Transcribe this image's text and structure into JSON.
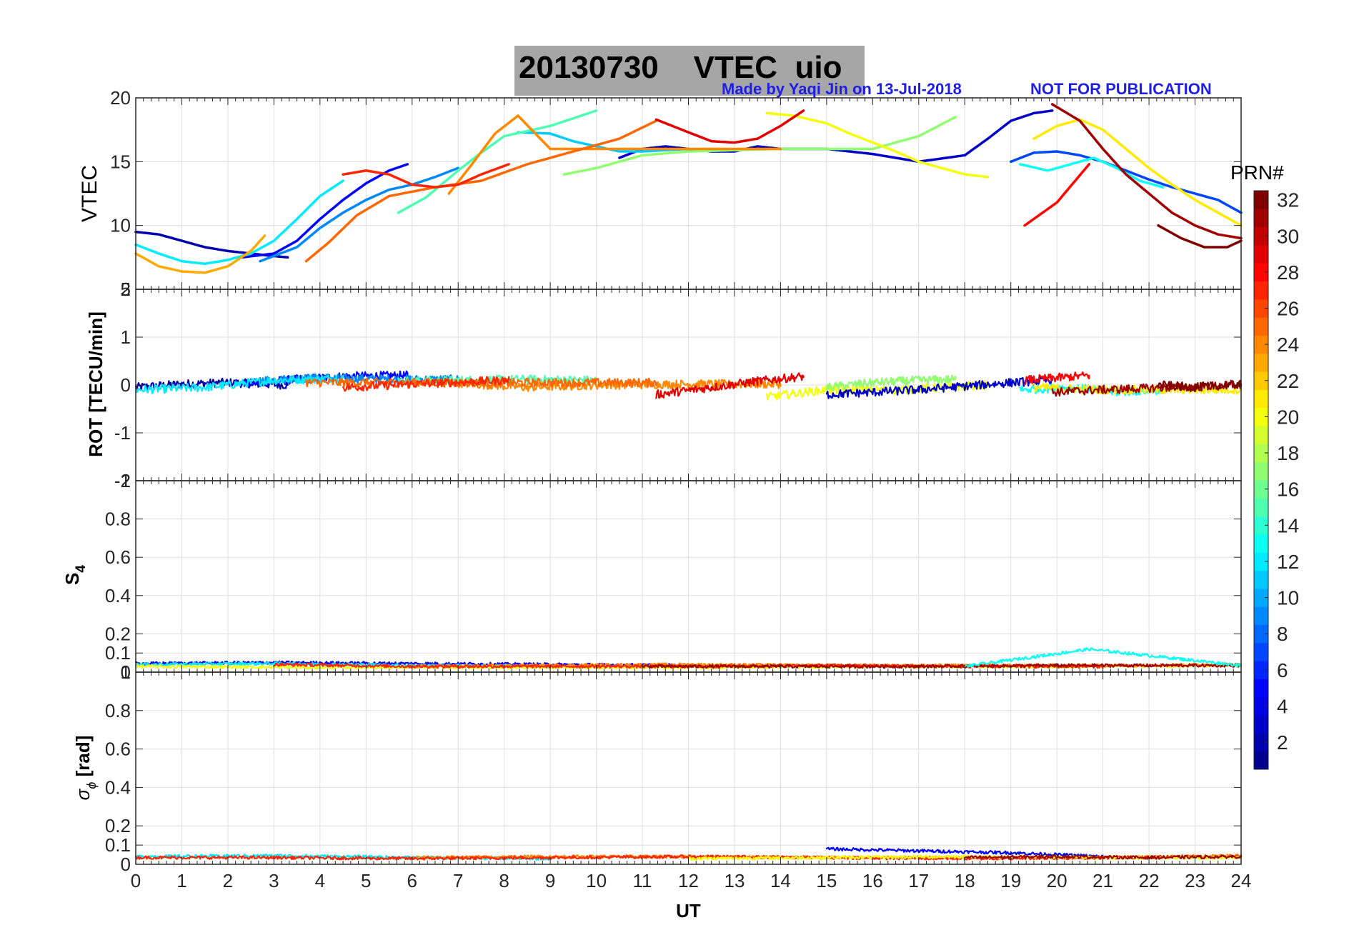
{
  "title": {
    "date": "20130730",
    "quantity": "VTEC",
    "station": "uio",
    "credit": "Made by Yaqi Jin on 13-Jul-2018",
    "notice": "NOT FOR PUBLICATION"
  },
  "colorbar": {
    "label": "PRN#",
    "min": 1,
    "max": 32,
    "ticks": [
      "2",
      "4",
      "6",
      "8",
      "10",
      "12",
      "14",
      "16",
      "18",
      "20",
      "22",
      "24",
      "26",
      "28",
      "30",
      "32"
    ],
    "colormap": [
      "#00008f",
      "#0000ff",
      "#0080ff",
      "#00ffff",
      "#80ff80",
      "#ffff00",
      "#ff8000",
      "#ff0000",
      "#800000"
    ]
  },
  "chart_data": [
    {
      "type": "line",
      "panel": "VTEC",
      "ylabel": "VTEC",
      "xlabel": "",
      "xlim": [
        0,
        24
      ],
      "ylim": [
        5,
        20
      ],
      "ytick_labels": [
        "5",
        "10",
        "15",
        "20"
      ],
      "grid": true,
      "series": [
        {
          "name": "PRN 2",
          "prn": 2,
          "x": [
            0,
            0.5,
            1,
            1.5,
            2,
            2.5,
            3,
            3.3
          ],
          "y": [
            9.5,
            9.3,
            8.8,
            8.3,
            8.0,
            7.8,
            7.6,
            7.5
          ]
        },
        {
          "name": "PRN 5",
          "prn": 5,
          "x": [
            2.3,
            3,
            3.5,
            4,
            4.5,
            5,
            5.5,
            5.9
          ],
          "y": [
            7.5,
            7.8,
            8.8,
            10.5,
            12.0,
            13.3,
            14.3,
            14.8
          ]
        },
        {
          "name": "PRN 3",
          "prn": 3,
          "x": [
            10.5,
            11,
            11.5,
            12,
            12.5,
            13,
            13.5,
            14,
            15,
            16,
            17,
            18,
            18.5,
            19,
            19.5,
            19.9
          ],
          "y": [
            15.3,
            16.0,
            16.2,
            16.0,
            15.8,
            15.8,
            16.2,
            16.0,
            16.0,
            15.6,
            15.0,
            15.5,
            16.8,
            18.2,
            18.8,
            19.0
          ]
        },
        {
          "name": "PRN 7",
          "prn": 7,
          "x": [
            19,
            19.5,
            20,
            20.5,
            21,
            21.5,
            22,
            22.5,
            23,
            23.5,
            24
          ],
          "y": [
            15.0,
            15.7,
            15.8,
            15.5,
            15.0,
            14.3,
            13.6,
            13.0,
            12.5,
            12.0,
            11.0
          ]
        },
        {
          "name": "PRN 9",
          "prn": 9,
          "x": [
            2.7,
            3.5,
            4,
            4.5,
            5,
            5.5,
            6,
            6.5,
            7
          ],
          "y": [
            7.2,
            8.3,
            9.8,
            11.0,
            12.0,
            12.8,
            13.2,
            13.8,
            14.5
          ]
        },
        {
          "name": "PRN 12",
          "prn": 12,
          "x": [
            0,
            0.5,
            1,
            1.5,
            2,
            2.5,
            3,
            3.5,
            4,
            4.5
          ],
          "y": [
            8.5,
            7.8,
            7.2,
            7.0,
            7.3,
            7.8,
            8.8,
            10.5,
            12.3,
            13.5
          ]
        },
        {
          "name": "PRN 11",
          "prn": 11,
          "x": [
            8.3,
            9,
            9.5,
            10,
            10.5,
            11,
            11.5,
            12
          ],
          "y": [
            17.3,
            17.2,
            16.6,
            16.2,
            15.8,
            15.8,
            15.9,
            16.0
          ]
        },
        {
          "name": "PRN 13",
          "prn": 13,
          "x": [
            19.2,
            19.8,
            20.3,
            20.8,
            21.3,
            21.8,
            22.3
          ],
          "y": [
            14.8,
            14.3,
            14.8,
            15.3,
            14.5,
            13.5,
            13.0
          ]
        },
        {
          "name": "PRN 15",
          "prn": 15,
          "x": [
            5.7,
            6.3,
            7,
            7.5,
            8,
            8.5,
            9,
            9.5,
            10
          ],
          "y": [
            11.0,
            12.2,
            14.3,
            15.7,
            17.0,
            17.4,
            17.8,
            18.4,
            19.0
          ]
        },
        {
          "name": "PRN 17",
          "prn": 17,
          "x": [
            9.3,
            10,
            10.5,
            11,
            12,
            13,
            14,
            15,
            16,
            17,
            17.8
          ],
          "y": [
            14.0,
            14.5,
            15.0,
            15.5,
            15.8,
            15.9,
            16.0,
            16.0,
            16.0,
            17.0,
            18.5
          ]
        },
        {
          "name": "PRN 20",
          "prn": 20,
          "x": [
            13.7,
            14.3,
            15,
            15.5,
            16,
            16.5,
            17,
            17.5,
            18,
            18.5
          ],
          "y": [
            18.8,
            18.6,
            18.0,
            17.2,
            16.5,
            15.8,
            15.0,
            14.5,
            14.0,
            13.8
          ]
        },
        {
          "name": "PRN 21",
          "prn": 21,
          "x": [
            19.5,
            20,
            20.5,
            21,
            21.5,
            22,
            22.5,
            23,
            23.5,
            24
          ],
          "y": [
            16.8,
            17.8,
            18.3,
            17.5,
            16.0,
            14.5,
            13.2,
            12.0,
            11.0,
            10.0
          ]
        },
        {
          "name": "PRN 23",
          "prn": 23,
          "x": [
            0,
            0.5,
            1,
            1.5,
            2,
            2.5,
            2.8
          ],
          "y": [
            7.8,
            6.8,
            6.4,
            6.3,
            6.8,
            8.0,
            9.2
          ]
        },
        {
          "name": "PRN 24",
          "prn": 24,
          "x": [
            6.8,
            7.3,
            7.8,
            8.3,
            9,
            10,
            11,
            12,
            13,
            14
          ],
          "y": [
            12.5,
            14.8,
            17.2,
            18.6,
            16.0,
            16.0,
            16.0,
            16.0,
            16.0,
            16.0
          ]
        },
        {
          "name": "PRN 25",
          "prn": 25,
          "x": [
            3.7,
            4.2,
            4.8,
            5.5,
            6.5,
            7.5,
            8.5,
            9.5,
            10.5,
            11.3
          ],
          "y": [
            7.2,
            8.7,
            10.8,
            12.3,
            13.0,
            13.5,
            14.8,
            15.8,
            16.8,
            18.2
          ]
        },
        {
          "name": "PRN 27",
          "prn": 27,
          "x": [
            4.5,
            5,
            5.5,
            6,
            6.5,
            7,
            7.5,
            8.1
          ],
          "y": [
            14.0,
            14.3,
            14.0,
            13.2,
            13.0,
            13.2,
            14.0,
            14.8
          ]
        },
        {
          "name": "PRN 28",
          "prn": 28,
          "x": [
            19.3,
            20,
            20.7
          ],
          "y": [
            10.0,
            11.8,
            14.8
          ]
        },
        {
          "name": "PRN 29",
          "prn": 29,
          "x": [
            11.3,
            12,
            12.5,
            13,
            13.5,
            14,
            14.5
          ],
          "y": [
            18.3,
            17.3,
            16.6,
            16.5,
            16.8,
            17.8,
            19.0
          ]
        },
        {
          "name": "PRN 31",
          "prn": 31,
          "x": [
            19.9,
            20.5,
            21,
            21.5,
            22,
            22.5,
            23,
            23.5,
            24
          ],
          "y": [
            19.5,
            18.2,
            16.0,
            14.0,
            12.5,
            11.0,
            10.0,
            9.3,
            9.0
          ]
        },
        {
          "name": "PRN 32",
          "prn": 32,
          "x": [
            22.2,
            22.7,
            23.2,
            23.7,
            24
          ],
          "y": [
            10.0,
            9.0,
            8.3,
            8.3,
            8.8
          ]
        }
      ]
    },
    {
      "type": "line",
      "panel": "ROT",
      "ylabel": "ROT [TECU/min]",
      "xlabel": "",
      "xlim": [
        0,
        24
      ],
      "ylim": [
        -2,
        2
      ],
      "ytick_labels": [
        "-2",
        "-1",
        "0",
        "1",
        "2"
      ],
      "grid": true,
      "series": [
        {
          "name": "PRN 2",
          "prn": 2,
          "x": [
            0,
            1,
            2,
            3.3
          ],
          "y": [
            -0.05,
            0.02,
            0.05,
            0.0
          ]
        },
        {
          "name": "PRN 5",
          "prn": 5,
          "x": [
            2.3,
            3.5,
            4.5,
            5.9
          ],
          "y": [
            0.02,
            0.12,
            0.18,
            0.2
          ]
        },
        {
          "name": "PRN 9",
          "prn": 9,
          "x": [
            2.7,
            4,
            5.5,
            7
          ],
          "y": [
            0.1,
            0.15,
            0.12,
            0.12
          ]
        },
        {
          "name": "PRN 12",
          "prn": 12,
          "x": [
            0,
            1.5,
            3,
            4.5
          ],
          "y": [
            -0.1,
            -0.05,
            0.1,
            0.15
          ]
        },
        {
          "name": "PRN 15",
          "prn": 15,
          "x": [
            5.7,
            7,
            8.5,
            10
          ],
          "y": [
            0.08,
            0.1,
            0.12,
            0.1
          ]
        },
        {
          "name": "PRN 24",
          "prn": 24,
          "x": [
            6.8,
            8.5,
            10,
            12,
            14
          ],
          "y": [
            0.05,
            -0.05,
            0.0,
            0.02,
            0.02
          ]
        },
        {
          "name": "PRN 25",
          "prn": 25,
          "x": [
            3.7,
            5.5,
            7.5,
            9.5,
            11.3
          ],
          "y": [
            0.05,
            0.05,
            0.05,
            0.05,
            0.05
          ]
        },
        {
          "name": "PRN 27",
          "prn": 27,
          "x": [
            4.5,
            6,
            8.1
          ],
          "y": [
            -0.05,
            0.02,
            0.1
          ]
        },
        {
          "name": "PRN 29",
          "prn": 29,
          "x": [
            11.3,
            12.5,
            13.5,
            14.5
          ],
          "y": [
            -0.2,
            -0.05,
            0.08,
            0.18
          ]
        },
        {
          "name": "PRN 20",
          "prn": 20,
          "x": [
            13.7,
            15,
            16.5,
            18.5
          ],
          "y": [
            -0.25,
            -0.1,
            -0.1,
            0.0
          ]
        },
        {
          "name": "PRN 17",
          "prn": 17,
          "x": [
            15,
            16,
            17,
            17.8
          ],
          "y": [
            -0.05,
            0.05,
            0.1,
            0.12
          ]
        },
        {
          "name": "PRN 3",
          "prn": 3,
          "x": [
            15,
            17,
            19,
            19.9
          ],
          "y": [
            -0.2,
            -0.1,
            0.05,
            0.1
          ]
        },
        {
          "name": "PRN 28",
          "prn": 28,
          "x": [
            19.3,
            20,
            20.7
          ],
          "y": [
            0.1,
            0.15,
            0.2
          ]
        },
        {
          "name": "PRN 13",
          "prn": 13,
          "x": [
            19.2,
            20.3,
            21.3,
            22.3
          ],
          "y": [
            -0.1,
            -0.05,
            -0.15,
            -0.1
          ]
        },
        {
          "name": "PRN 21",
          "prn": 21,
          "x": [
            19.5,
            21,
            22.5,
            24
          ],
          "y": [
            -0.05,
            -0.1,
            -0.1,
            -0.1
          ]
        },
        {
          "name": "PRN 31",
          "prn": 31,
          "x": [
            19.9,
            21,
            22.5,
            24
          ],
          "y": [
            -0.15,
            -0.1,
            -0.05,
            0.0
          ]
        },
        {
          "name": "PRN 32",
          "prn": 32,
          "x": [
            22.2,
            23,
            24
          ],
          "y": [
            0.0,
            -0.05,
            0.02
          ]
        }
      ]
    },
    {
      "type": "line",
      "panel": "S4",
      "ylabel": "S4",
      "xlabel": "",
      "xlim": [
        0,
        24
      ],
      "ylim": [
        0,
        1
      ],
      "ytick_labels": [
        "0",
        "0.1",
        "0.2",
        "0.4",
        "0.6",
        "0.8",
        "1"
      ],
      "grid": true,
      "series": [
        {
          "name": "PRN 5",
          "prn": 5,
          "x": [
            0,
            3,
            6,
            9,
            12
          ],
          "y": [
            0.045,
            0.05,
            0.045,
            0.04,
            0.035
          ]
        },
        {
          "name": "PRN 12",
          "prn": 12,
          "x": [
            0,
            3,
            6,
            9
          ],
          "y": [
            0.04,
            0.045,
            0.035,
            0.03
          ]
        },
        {
          "name": "PRN 20",
          "prn": 20,
          "x": [
            0,
            4,
            8,
            12,
            16,
            20,
            24
          ],
          "y": [
            0.03,
            0.025,
            0.025,
            0.025,
            0.03,
            0.03,
            0.035
          ]
        },
        {
          "name": "PRN 24",
          "prn": 24,
          "x": [
            6,
            9,
            12,
            15,
            18,
            21,
            24
          ],
          "y": [
            0.03,
            0.035,
            0.04,
            0.035,
            0.035,
            0.035,
            0.04
          ]
        },
        {
          "name": "PRN 27",
          "prn": 27,
          "x": [
            3,
            6,
            9,
            12,
            15,
            18,
            21
          ],
          "y": [
            0.04,
            0.03,
            0.03,
            0.03,
            0.035,
            0.03,
            0.03
          ]
        },
        {
          "name": "PRN 31",
          "prn": 31,
          "x": [
            11,
            14,
            17,
            20,
            24
          ],
          "y": [
            0.03,
            0.03,
            0.03,
            0.035,
            0.035
          ]
        },
        {
          "name": "PRN 13",
          "prn": 13,
          "x": [
            18,
            20.7,
            24
          ],
          "y": [
            0.03,
            0.12,
            0.035
          ]
        }
      ]
    },
    {
      "type": "line",
      "panel": "sigma_phi",
      "ylabel": "σ_ϕ [rad]",
      "xlabel": "UT",
      "xlim": [
        0,
        24
      ],
      "ylim": [
        0,
        1
      ],
      "ytick_labels": [
        "0",
        "0.1",
        "0.2",
        "0.4",
        "0.6",
        "0.8",
        "1"
      ],
      "xtick_labels": [
        "0",
        "1",
        "2",
        "3",
        "4",
        "5",
        "6",
        "7",
        "8",
        "9",
        "10",
        "11",
        "12",
        "13",
        "14",
        "15",
        "16",
        "17",
        "18",
        "19",
        "20",
        "21",
        "22",
        "23",
        "24"
      ],
      "grid": true,
      "series": [
        {
          "name": "PRN 12",
          "prn": 12,
          "x": [
            0,
            3,
            6,
            9
          ],
          "y": [
            0.04,
            0.045,
            0.035,
            0.03
          ]
        },
        {
          "name": "PRN 5",
          "prn": 5,
          "x": [
            15,
            17,
            19,
            21
          ],
          "y": [
            0.08,
            0.07,
            0.06,
            0.04
          ]
        },
        {
          "name": "PRN 24",
          "prn": 24,
          "x": [
            6,
            9,
            12,
            15,
            18,
            21,
            24
          ],
          "y": [
            0.035,
            0.04,
            0.04,
            0.035,
            0.035,
            0.035,
            0.045
          ]
        },
        {
          "name": "PRN 27",
          "prn": 27,
          "x": [
            0,
            3,
            6,
            9,
            12,
            15,
            18,
            21,
            24
          ],
          "y": [
            0.035,
            0.035,
            0.03,
            0.035,
            0.04,
            0.035,
            0.03,
            0.035,
            0.04
          ]
        },
        {
          "name": "PRN 20",
          "prn": 20,
          "x": [
            12,
            15,
            18,
            21,
            24
          ],
          "y": [
            0.03,
            0.035,
            0.04,
            0.035,
            0.035
          ]
        },
        {
          "name": "PRN 31",
          "prn": 31,
          "x": [
            18,
            20,
            22,
            24
          ],
          "y": [
            0.035,
            0.04,
            0.035,
            0.04
          ]
        }
      ]
    }
  ]
}
